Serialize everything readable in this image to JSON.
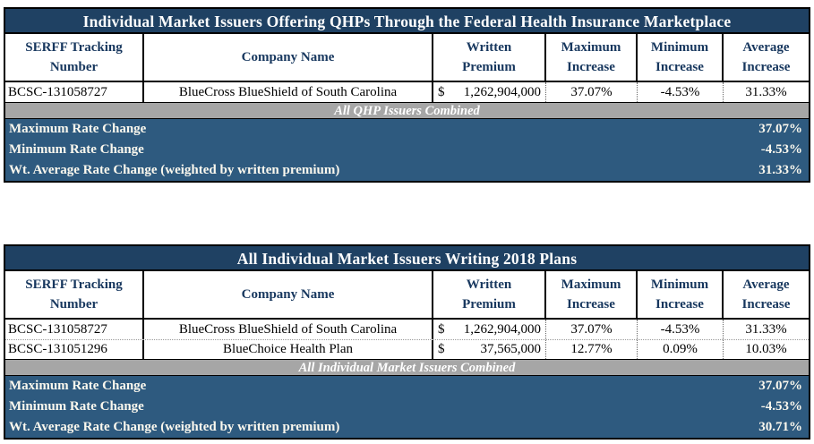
{
  "colors": {
    "title_bar_bg": "#1F4163",
    "header_text": "#17375E",
    "combined_band_bg": "#A6A6A6",
    "summary_bg": "#2E5A7F",
    "summary_text": "#FBF8EE",
    "border": "#000000"
  },
  "qhp_table": {
    "title": "Individual Market Issuers Offering QHPs Through the Federal Health Insurance Marketplace",
    "columns": [
      "SERFF Tracking Number",
      "Company Name",
      "Written Premium",
      "Maximum Increase",
      "Minimum Increase",
      "Average Increase"
    ],
    "rows": [
      {
        "serff": "BCSC-131058727",
        "company": "BlueCross BlueShield of South Carolina",
        "currency": "$",
        "premium": "1,262,904,000",
        "max": "37.07%",
        "min": "-4.53%",
        "avg": "31.33%"
      }
    ],
    "combined_label": "All QHP Issuers Combined",
    "summary": [
      {
        "label": "Maximum Rate Change",
        "value": "37.07%"
      },
      {
        "label": "Minimum Rate Change",
        "value": "-4.53%"
      },
      {
        "label": "Wt. Average Rate Change (weighted by written premium)",
        "value": "31.33%"
      }
    ]
  },
  "all_issuers_table": {
    "title": "All Individual Market Issuers Writing 2018 Plans",
    "columns": [
      "SERFF Tracking Number",
      "Company Name",
      "Written Premium",
      "Maximum Increase",
      "Minimum Increase",
      "Average Increase"
    ],
    "rows": [
      {
        "serff": "BCSC-131058727",
        "company": "BlueCross BlueShield of South Carolina",
        "currency": "$",
        "premium": "1,262,904,000",
        "max": "37.07%",
        "min": "-4.53%",
        "avg": "31.33%"
      },
      {
        "serff": "BCSC-131051296",
        "company": "BlueChoice Health Plan",
        "currency": "$",
        "premium": "37,565,000",
        "max": "12.77%",
        "min": "0.09%",
        "avg": "10.03%"
      }
    ],
    "combined_label": "All Individual Market Issuers Combined",
    "summary": [
      {
        "label": "Maximum Rate Change",
        "value": "37.07%"
      },
      {
        "label": "Minimum Rate Change",
        "value": "-4.53%"
      },
      {
        "label": "Wt. Average Rate Change (weighted by written premium)",
        "value": "30.71%"
      }
    ]
  }
}
